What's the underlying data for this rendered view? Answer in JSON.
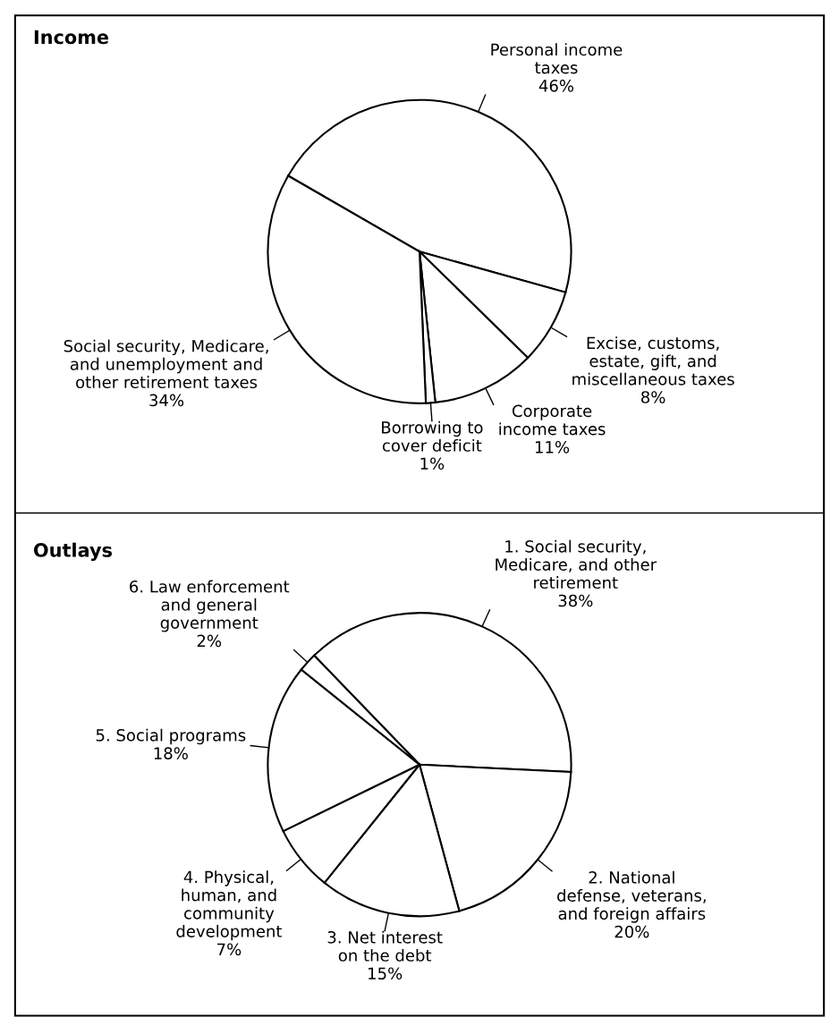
{
  "chart_data": [
    {
      "type": "pie",
      "title": "Income",
      "categories": [
        "Personal income\ntaxes",
        "Excise, customs,\nestate, gift, and\nmiscellaneous taxes",
        "Corporate\nincome taxes",
        "Borrowing to\ncover deficit",
        "Social security, Medicare,\nand unemployment and\nother retirement taxes"
      ],
      "values": [
        46,
        8,
        11,
        1,
        34
      ],
      "value_labels": [
        "46%",
        "8%",
        "11%",
        "1%",
        "34%"
      ],
      "colors": [
        "#ffffff",
        "#ffffff",
        "#ffffff",
        "#ffffff",
        "#ffffff"
      ]
    },
    {
      "type": "pie",
      "title": "Outlays",
      "categories": [
        "1. Social security,\nMedicare, and other\nretirement",
        "2. National\ndefense, veterans,\nand foreign affairs",
        "3. Net interest\non the debt",
        "4. Physical,\nhuman, and\ncommunity\ndevelopment",
        "5. Social programs",
        "6. Law enforcement\nand general\ngovernment"
      ],
      "values": [
        38,
        20,
        15,
        7,
        18,
        2
      ],
      "value_labels": [
        "38%",
        "20%",
        "15%",
        "7%",
        "18%",
        "2%"
      ],
      "colors": [
        "#ffffff",
        "#ffffff",
        "#ffffff",
        "#ffffff",
        "#ffffff",
        "#ffffff"
      ]
    }
  ]
}
